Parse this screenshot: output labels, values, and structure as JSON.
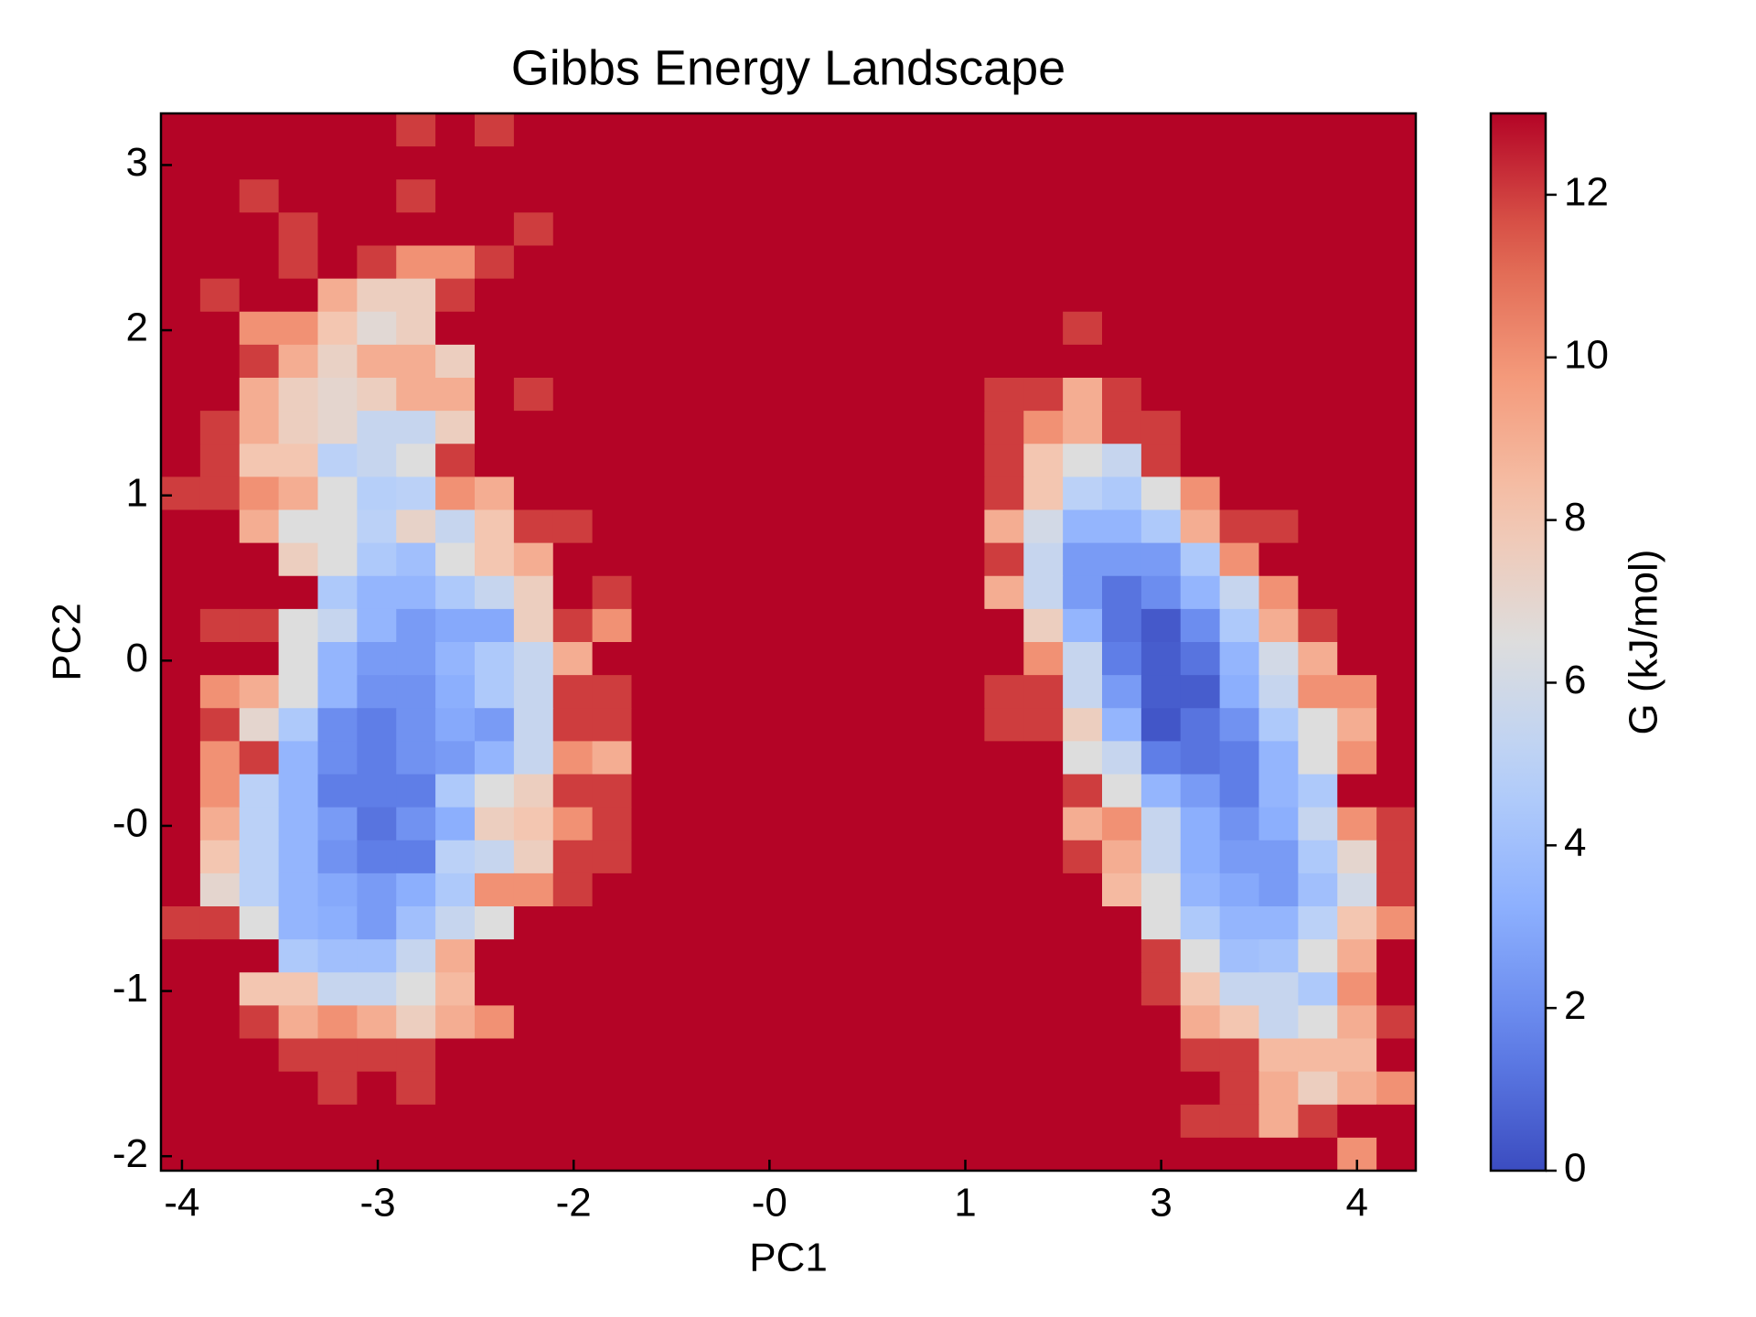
{
  "chart_data": {
    "type": "heatmap",
    "title": "Gibbs Energy Landscape",
    "x_label": "PC1",
    "y_label": "PC2",
    "colorbar_label": "G (kJ/mol)",
    "colormap": "coolwarm",
    "xlim": [
      -4.45,
      4.52
    ],
    "ylim": [
      -2.07,
      3.05
    ],
    "zlim": [
      0,
      13
    ],
    "xticks": [
      {
        "value": -4.3,
        "label": "-4"
      },
      {
        "value": -2.9,
        "label": "-3"
      },
      {
        "value": -1.5,
        "label": "-2"
      },
      {
        "value": -0.1,
        "label": "-0"
      },
      {
        "value": 1.3,
        "label": "1"
      },
      {
        "value": 2.7,
        "label": "3"
      },
      {
        "value": 4.1,
        "label": "4"
      }
    ],
    "yticks": [
      {
        "value": 2.8,
        "label": "3"
      },
      {
        "value": 2.0,
        "label": "2"
      },
      {
        "value": 1.2,
        "label": "1"
      },
      {
        "value": 0.4,
        "label": "0"
      },
      {
        "value": -0.4,
        "label": "-0"
      },
      {
        "value": -1.2,
        "label": "-1"
      },
      {
        "value": -2.0,
        "label": "-2"
      }
    ],
    "colorbar_ticks": [
      0,
      2,
      4,
      6,
      8,
      10,
      12
    ],
    "z": [
      [
        13,
        13,
        13,
        13,
        13,
        13,
        12,
        13,
        12,
        13,
        13,
        13,
        13,
        13,
        13,
        13,
        13,
        13,
        13,
        13,
        13,
        13,
        13,
        13,
        13,
        13,
        13,
        13,
        13,
        13,
        13,
        13
      ],
      [
        13,
        13,
        13,
        13,
        13,
        13,
        13,
        13,
        13,
        13,
        13,
        13,
        13,
        13,
        13,
        13,
        13,
        13,
        13,
        13,
        13,
        13,
        13,
        13,
        13,
        13,
        13,
        13,
        13,
        13,
        13,
        13
      ],
      [
        13,
        13,
        12,
        13,
        13,
        13,
        12,
        13,
        13,
        13,
        13,
        13,
        13,
        13,
        13,
        13,
        13,
        13,
        13,
        13,
        13,
        13,
        13,
        13,
        13,
        13,
        13,
        13,
        13,
        13,
        13,
        13
      ],
      [
        13,
        13,
        13,
        12,
        13,
        13,
        13,
        13,
        13,
        12,
        13,
        13,
        13,
        13,
        13,
        13,
        13,
        13,
        13,
        13,
        13,
        13,
        13,
        13,
        13,
        13,
        13,
        13,
        13,
        13,
        13,
        13
      ],
      [
        13,
        13,
        13,
        12,
        13,
        12,
        10,
        10,
        12,
        13,
        13,
        13,
        13,
        13,
        13,
        13,
        13,
        13,
        13,
        13,
        13,
        13,
        13,
        13,
        13,
        13,
        13,
        13,
        13,
        13,
        13,
        13
      ],
      [
        13,
        12,
        13,
        13,
        9,
        7.5,
        7.5,
        12,
        13,
        13,
        13,
        13,
        13,
        13,
        13,
        13,
        13,
        13,
        13,
        13,
        13,
        13,
        13,
        13,
        13,
        13,
        13,
        13,
        13,
        13,
        13,
        13
      ],
      [
        13,
        13,
        10,
        10,
        8,
        6.8,
        7.5,
        13,
        13,
        13,
        13,
        13,
        13,
        13,
        13,
        13,
        13,
        13,
        13,
        13,
        13,
        13,
        13,
        12,
        13,
        13,
        13,
        13,
        13,
        13,
        13,
        13
      ],
      [
        13,
        13,
        12,
        9,
        7.3,
        9,
        9,
        7.5,
        13,
        13,
        13,
        13,
        13,
        13,
        13,
        13,
        13,
        13,
        13,
        13,
        13,
        13,
        13,
        13,
        13,
        13,
        13,
        13,
        13,
        13,
        13,
        13
      ],
      [
        13,
        13,
        9,
        7.5,
        7,
        7.5,
        9,
        9,
        13,
        12,
        13,
        13,
        13,
        13,
        13,
        13,
        13,
        13,
        13,
        13,
        13,
        12,
        12,
        9,
        12,
        13,
        13,
        13,
        13,
        13,
        13,
        13
      ],
      [
        13,
        12,
        9,
        7.5,
        7,
        5.5,
        5.5,
        7.5,
        13,
        13,
        13,
        13,
        13,
        13,
        13,
        13,
        13,
        13,
        13,
        13,
        13,
        12,
        10,
        9,
        12,
        12,
        13,
        13,
        13,
        13,
        13,
        13
      ],
      [
        13,
        12,
        8,
        8,
        5,
        5.5,
        6.5,
        12,
        13,
        13,
        13,
        13,
        13,
        13,
        13,
        13,
        13,
        13,
        13,
        13,
        13,
        12,
        8,
        6.5,
        5.5,
        12,
        13,
        13,
        13,
        13,
        13,
        13
      ],
      [
        12,
        12,
        10,
        9,
        6.5,
        4.8,
        5,
        10,
        9,
        13,
        13,
        13,
        13,
        13,
        13,
        13,
        13,
        13,
        13,
        13,
        13,
        12,
        8,
        5,
        4.5,
        6.5,
        10,
        13,
        13,
        13,
        13,
        13
      ],
      [
        13,
        13,
        9,
        6.5,
        6.5,
        5,
        7.2,
        5.5,
        8,
        12,
        12,
        13,
        13,
        13,
        13,
        13,
        13,
        13,
        13,
        13,
        13,
        9,
        6,
        3.5,
        3.5,
        4.5,
        9,
        12,
        12,
        13,
        13,
        13
      ],
      [
        13,
        13,
        13,
        7.5,
        6.5,
        4.5,
        4,
        6.5,
        8,
        9,
        13,
        13,
        13,
        13,
        13,
        13,
        13,
        13,
        13,
        13,
        13,
        12,
        5.5,
        2.5,
        2.5,
        2.5,
        4.5,
        10,
        13,
        13,
        13,
        13
      ],
      [
        13,
        13,
        13,
        13,
        4.5,
        3.5,
        3.5,
        4.5,
        5.5,
        7.5,
        13,
        12,
        13,
        13,
        13,
        13,
        13,
        13,
        13,
        13,
        13,
        9,
        5.5,
        2.5,
        1.2,
        2,
        3.5,
        5.5,
        10,
        13,
        13,
        13
      ],
      [
        13,
        12,
        12,
        6.5,
        5.5,
        3.5,
        2.5,
        3,
        3,
        7.5,
        12,
        10,
        13,
        13,
        13,
        13,
        13,
        13,
        13,
        13,
        13,
        13,
        7.5,
        3.5,
        1.2,
        0.4,
        2,
        4.5,
        9,
        12,
        13,
        13
      ],
      [
        13,
        13,
        13,
        6.5,
        3.5,
        2.5,
        2.5,
        3.5,
        4.5,
        5.5,
        9,
        13,
        13,
        13,
        13,
        13,
        13,
        13,
        13,
        13,
        13,
        13,
        10,
        5.5,
        1.5,
        0.5,
        1.2,
        3.5,
        6,
        9,
        13,
        13
      ],
      [
        13,
        10,
        9,
        6.5,
        3.5,
        2.2,
        2.2,
        3.2,
        4.5,
        5.5,
        12,
        12,
        13,
        13,
        13,
        13,
        13,
        13,
        13,
        13,
        13,
        12,
        12,
        5.5,
        2.5,
        0.5,
        0.5,
        3.2,
        5.5,
        10,
        10,
        13
      ],
      [
        13,
        12,
        7,
        4.5,
        2,
        1.5,
        2.2,
        3,
        2.5,
        5.5,
        12,
        12,
        13,
        13,
        13,
        13,
        13,
        13,
        13,
        13,
        13,
        12,
        12,
        7.5,
        3.5,
        0.3,
        1.2,
        2.2,
        4.5,
        6.5,
        9,
        13
      ],
      [
        13,
        10,
        12,
        3.5,
        2,
        1.5,
        2.2,
        2.5,
        3.5,
        5.5,
        10,
        9,
        13,
        13,
        13,
        13,
        13,
        13,
        13,
        13,
        13,
        13,
        13,
        6.5,
        5.5,
        1.5,
        1.2,
        1.5,
        3.5,
        6.5,
        10,
        13
      ],
      [
        13,
        10,
        5,
        3.5,
        1.5,
        1.5,
        1.5,
        4.5,
        6.5,
        7.5,
        12,
        12,
        13,
        13,
        13,
        13,
        13,
        13,
        13,
        13,
        13,
        13,
        13,
        12,
        6.5,
        3.5,
        2.5,
        1.5,
        3.5,
        4.5,
        13,
        13
      ],
      [
        13,
        9,
        5,
        3.5,
        2.5,
        1.2,
        2.2,
        3.2,
        7.5,
        8,
        10,
        12,
        13,
        13,
        13,
        13,
        13,
        13,
        13,
        13,
        13,
        13,
        13,
        9,
        10,
        5.5,
        3.2,
        2.2,
        3.2,
        5.5,
        10,
        12
      ],
      [
        13,
        8,
        5,
        3.5,
        2.2,
        1.5,
        1.5,
        5,
        5.5,
        7.5,
        12,
        12,
        13,
        13,
        13,
        13,
        13,
        13,
        13,
        13,
        13,
        13,
        13,
        12,
        9,
        5.5,
        3.2,
        2.5,
        2.5,
        4.5,
        7,
        12
      ],
      [
        13,
        7,
        5,
        3.5,
        3,
        2.5,
        3.2,
        4.5,
        10,
        10,
        12,
        13,
        13,
        13,
        13,
        13,
        13,
        13,
        13,
        13,
        13,
        13,
        13,
        13,
        8.5,
        6.5,
        3.5,
        3,
        2.5,
        4,
        6,
        12
      ],
      [
        12,
        12,
        6.5,
        3.5,
        3.2,
        2.5,
        4,
        5.5,
        6.5,
        13,
        13,
        13,
        13,
        13,
        13,
        13,
        13,
        13,
        13,
        13,
        13,
        13,
        13,
        13,
        13,
        6.5,
        4.5,
        3.5,
        3.5,
        5,
        8,
        10
      ],
      [
        13,
        13,
        13,
        4.5,
        4,
        4,
        5.5,
        9,
        13,
        13,
        13,
        13,
        13,
        13,
        13,
        13,
        13,
        13,
        13,
        13,
        13,
        13,
        13,
        13,
        13,
        12,
        6.5,
        4,
        4.2,
        6.5,
        9,
        13
      ],
      [
        13,
        13,
        8,
        8,
        5.5,
        5.5,
        6.5,
        8.5,
        13,
        13,
        13,
        13,
        13,
        13,
        13,
        13,
        13,
        13,
        13,
        13,
        13,
        13,
        13,
        13,
        13,
        12,
        8,
        5.5,
        5.5,
        4.5,
        10,
        13
      ],
      [
        13,
        13,
        12,
        9,
        10,
        9,
        7.5,
        9,
        10,
        13,
        13,
        13,
        13,
        13,
        13,
        13,
        13,
        13,
        13,
        13,
        13,
        13,
        13,
        13,
        13,
        13,
        9,
        8,
        5.5,
        6.5,
        9,
        12
      ],
      [
        13,
        13,
        13,
        12,
        12,
        12,
        12,
        13,
        13,
        13,
        13,
        13,
        13,
        13,
        13,
        13,
        13,
        13,
        13,
        13,
        13,
        13,
        13,
        13,
        13,
        13,
        12,
        12,
        8.5,
        8.5,
        8.5,
        13
      ],
      [
        13,
        13,
        13,
        13,
        12,
        13,
        12,
        13,
        13,
        13,
        13,
        13,
        13,
        13,
        13,
        13,
        13,
        13,
        13,
        13,
        13,
        13,
        13,
        13,
        13,
        13,
        13,
        12,
        9,
        7.5,
        9,
        10
      ],
      [
        13,
        13,
        13,
        13,
        13,
        13,
        13,
        13,
        13,
        13,
        13,
        13,
        13,
        13,
        13,
        13,
        13,
        13,
        13,
        13,
        13,
        13,
        13,
        13,
        13,
        13,
        12,
        12,
        9,
        12,
        13,
        13
      ],
      [
        13,
        13,
        13,
        13,
        13,
        13,
        13,
        13,
        13,
        13,
        13,
        13,
        13,
        13,
        13,
        13,
        13,
        13,
        13,
        13,
        13,
        13,
        13,
        13,
        13,
        13,
        13,
        13,
        13,
        13,
        10,
        13
      ]
    ]
  }
}
